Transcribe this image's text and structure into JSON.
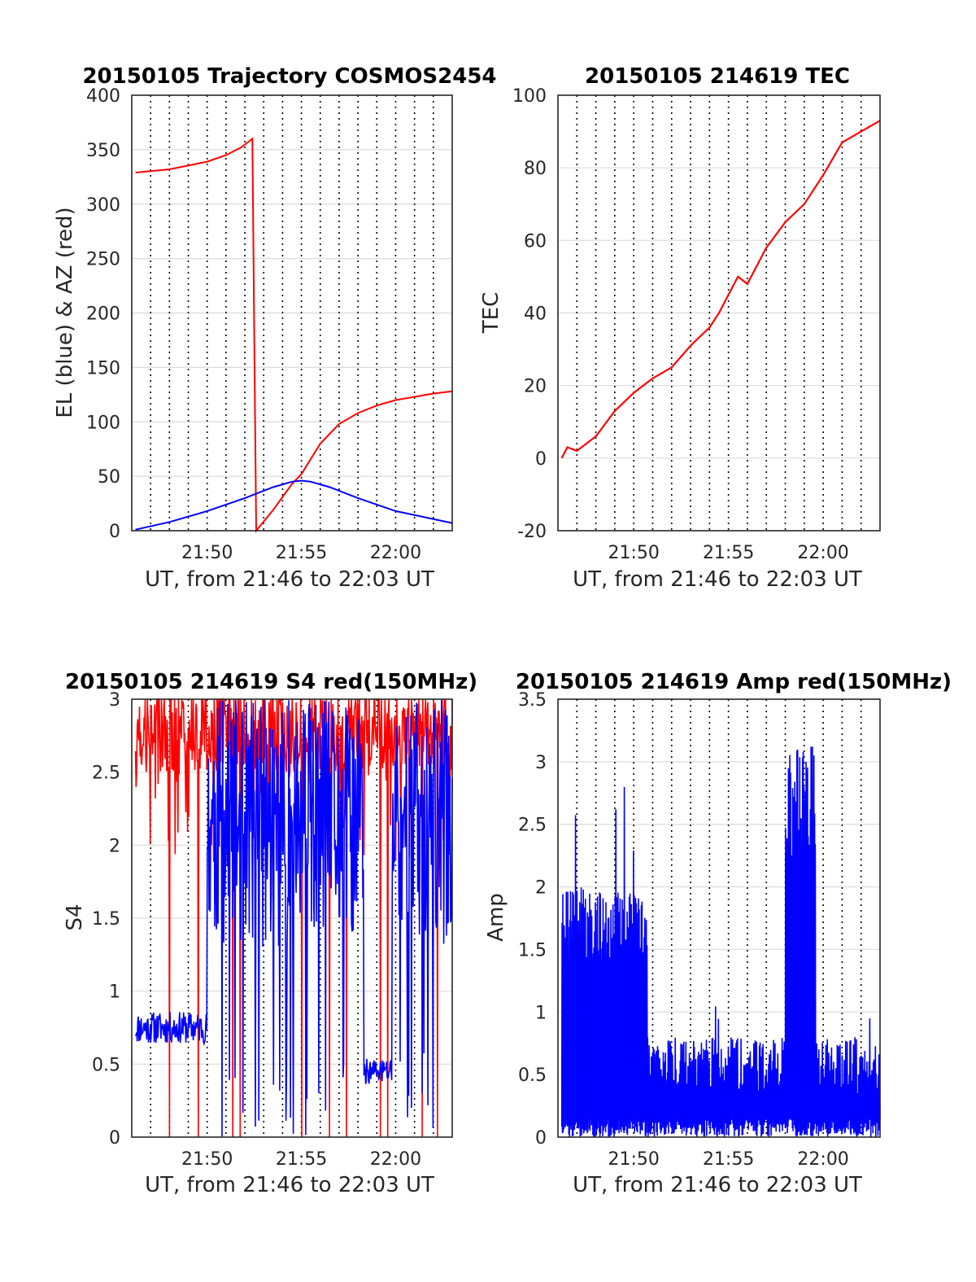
{
  "chart_data": [
    {
      "type": "line",
      "title": "20150105 Trajectory COSMOS2454",
      "xlabel": "UT, from 21:46 to 22:03 UT",
      "ylabel": "EL (blue) & AZ (red)",
      "xlim": [
        "21:46",
        "22:03"
      ],
      "ylim": [
        0,
        400
      ],
      "xticks": [
        "21:50",
        "21:55",
        "22:00"
      ],
      "yticks": [
        "0",
        "50",
        "100",
        "150",
        "200",
        "250",
        "300",
        "350",
        "400"
      ],
      "grid": true,
      "x_unit": "minutes after 21:46",
      "series": [
        {
          "color": "#ff0000",
          "x": [
            0.2,
            2,
            4,
            5,
            5.8,
            6.4,
            6.5,
            6.6,
            7.5,
            8.5,
            9,
            10,
            11,
            12,
            13,
            14,
            15,
            16,
            17
          ],
          "y": [
            329,
            332,
            339,
            345,
            352,
            360,
            180,
            0,
            19,
            43,
            52,
            80,
            98,
            108,
            115,
            120,
            123,
            126,
            128
          ]
        },
        {
          "color": "#0000ff",
          "x": [
            0.2,
            2,
            4,
            6,
            7.5,
            8.5,
            9,
            9.5,
            10.5,
            12,
            14,
            17
          ],
          "y": [
            1,
            8,
            18,
            30,
            40,
            45,
            46,
            45,
            40,
            30,
            18,
            7
          ]
        }
      ]
    },
    {
      "type": "line",
      "title": "20150105 214619 TEC",
      "xlabel": "UT, from 21:46 to 22:03 UT",
      "ylabel": "TEC",
      "xlim": [
        "21:46",
        "22:03"
      ],
      "ylim": [
        -20,
        100
      ],
      "xticks": [
        "21:50",
        "21:55",
        "22:00"
      ],
      "yticks": [
        "-20",
        "0",
        "20",
        "40",
        "60",
        "80",
        "100"
      ],
      "grid": true,
      "series": [
        {
          "color": "#ff0000",
          "x": [
            0.2,
            0.5,
            1,
            1.5,
            2,
            3,
            4,
            5,
            6,
            7,
            8,
            8.5,
            9,
            9.5,
            10,
            11,
            12,
            13,
            14,
            15,
            16,
            17
          ],
          "y": [
            0,
            3,
            2,
            4,
            6,
            13,
            18,
            22,
            25,
            31,
            36,
            40,
            45,
            50,
            48,
            58,
            65,
            70,
            78,
            87,
            90,
            93
          ]
        }
      ]
    },
    {
      "type": "line",
      "title": "20150105 214619 S4 red(150MHz)",
      "xlabel": "UT, from 21:46 to 22:03 UT",
      "ylabel": "S4",
      "xlim": [
        "21:46",
        "22:03"
      ],
      "ylim": [
        0,
        3
      ],
      "xticks": [
        "21:50",
        "21:55",
        "22:00"
      ],
      "yticks": [
        "0",
        "0.5",
        "1",
        "1.5",
        "2",
        "2.5",
        "3"
      ],
      "grid": true,
      "series": [
        {
          "color": "#ff0000",
          "note": "S4 mostly saturated near 3 with dropouts to 0"
        },
        {
          "color": "#0000ff",
          "note": "S4 about 0.75 until 21:50, then 1.2 to 3, about 0.45 near 21:59"
        }
      ],
      "key_values": {
        "blue_early_level": 0.75,
        "blue_late_level": 0.45
      }
    },
    {
      "type": "line",
      "title": "20150105 214619 Amp red(150MHz)",
      "xlabel": "UT, from 21:46 to 22:03 UT",
      "ylabel": "Amp",
      "xlim": [
        "21:46",
        "22:03"
      ],
      "ylim": [
        0,
        3.5
      ],
      "xticks": [
        "21:50",
        "21:55",
        "22:00"
      ],
      "yticks": [
        "0",
        "0.5",
        "1",
        "1.5",
        "2",
        "2.5",
        "3",
        "3.5"
      ],
      "grid": true,
      "series": [
        {
          "color": "#0000ff",
          "note": "amplitude noise up to about 2.2 before 21:51, below 0.8 afterwards, burst up to 3.1 near 21:59"
        },
        {
          "color": "#ff0000",
          "note": "mostly hidden beneath blue"
        }
      ],
      "key_values": {
        "early_peak": 2.55,
        "late_burst_peak": 3.1
      }
    }
  ]
}
